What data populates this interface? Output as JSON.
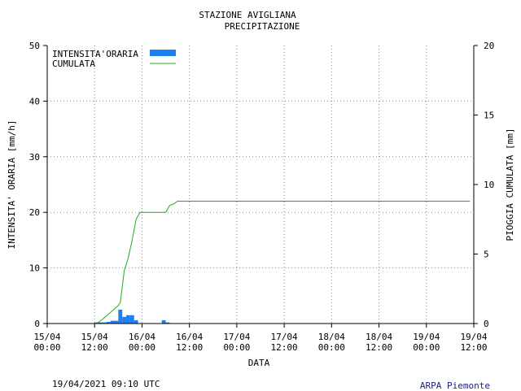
{
  "title": "STAZIONE AVIGLIANA",
  "subtitle": "PRECIPITAZIONE",
  "footer": {
    "timestamp": "19/04/2021 09:10 UTC",
    "credit": "ARPA Piemonte"
  },
  "colors": {
    "bar": "#1e7ff0",
    "line": "#22aa22",
    "grid": "#888888"
  },
  "chart_data": {
    "type": "bar",
    "xlabel": "DATA",
    "ylabel_left": "INTENSITA' ORARIA [mm/h]",
    "ylabel_right": "PIOGGIA CUMULATA [mm]",
    "x_range_hours": [
      0,
      108
    ],
    "left_ylim": [
      0,
      50
    ],
    "right_ylim": [
      0,
      20
    ],
    "left_ticks": [
      0,
      10,
      20,
      30,
      40,
      50
    ],
    "right_ticks": [
      0,
      5,
      10,
      15,
      20
    ],
    "x_ticks": [
      {
        "date": "15/04",
        "time": "00:00"
      },
      {
        "date": "15/04",
        "time": "12:00"
      },
      {
        "date": "16/04",
        "time": "00:00"
      },
      {
        "date": "16/04",
        "time": "12:00"
      },
      {
        "date": "17/04",
        "time": "00:00"
      },
      {
        "date": "17/04",
        "time": "12:00"
      },
      {
        "date": "18/04",
        "time": "00:00"
      },
      {
        "date": "18/04",
        "time": "12:00"
      },
      {
        "date": "19/04",
        "time": "00:00"
      },
      {
        "date": "19/04",
        "time": "12:00"
      }
    ],
    "grid": true,
    "legend_position": "top-left",
    "series": [
      {
        "name": "INTENSITA'ORARIA",
        "type": "bar",
        "axis": "left",
        "points": [
          {
            "x": 13,
            "y": 0.2
          },
          {
            "x": 14,
            "y": 0.2
          },
          {
            "x": 15,
            "y": 0.2
          },
          {
            "x": 16,
            "y": 0.3
          },
          {
            "x": 17,
            "y": 0.5
          },
          {
            "x": 18,
            "y": 0.5
          },
          {
            "x": 19,
            "y": 2.5
          },
          {
            "x": 20,
            "y": 1.2
          },
          {
            "x": 21,
            "y": 1.5
          },
          {
            "x": 22,
            "y": 1.5
          },
          {
            "x": 23,
            "y": 0.6
          },
          {
            "x": 30,
            "y": 0.6
          },
          {
            "x": 31,
            "y": 0.2
          }
        ]
      },
      {
        "name": "CUMULATA",
        "type": "line",
        "axis": "right",
        "points": [
          {
            "x": 0,
            "y": 0
          },
          {
            "x": 12.5,
            "y": 0
          },
          {
            "x": 14,
            "y": 0.3
          },
          {
            "x": 16,
            "y": 0.8
          },
          {
            "x": 18,
            "y": 1.3
          },
          {
            "x": 18.5,
            "y": 1.5
          },
          {
            "x": 19.5,
            "y": 3.8
          },
          {
            "x": 20.5,
            "y": 4.7
          },
          {
            "x": 21.5,
            "y": 6.0
          },
          {
            "x": 22.5,
            "y": 7.5
          },
          {
            "x": 23.5,
            "y": 8.0
          },
          {
            "x": 30,
            "y": 8.0
          },
          {
            "x": 31,
            "y": 8.5
          },
          {
            "x": 32,
            "y": 8.6
          },
          {
            "x": 33,
            "y": 8.8
          },
          {
            "x": 107,
            "y": 8.8
          }
        ]
      }
    ]
  }
}
